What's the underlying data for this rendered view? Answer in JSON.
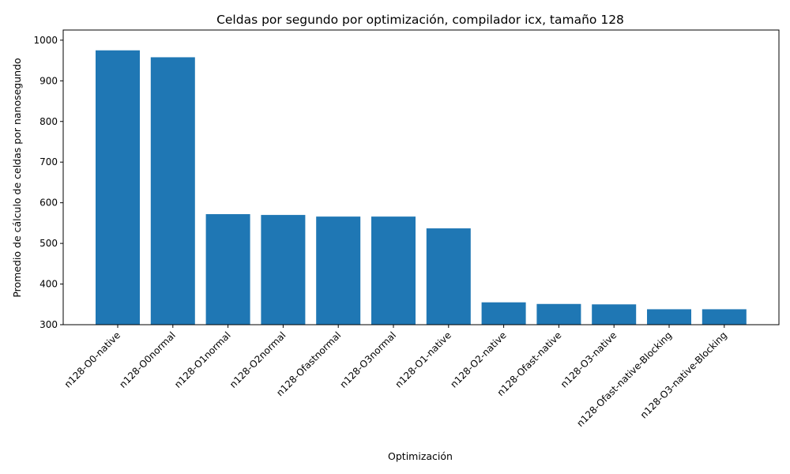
{
  "chart_data": {
    "type": "bar",
    "title": "Celdas por segundo por optimización, compilador icx, tamaño 128",
    "xlabel": "Optimización",
    "ylabel": "Promedio de cálculo de celdas por nanosegundo",
    "categories": [
      "n128-O0-native",
      "n128-O0normal",
      "n128-O1normal",
      "n128-O2normal",
      "n128-Ofastnormal",
      "n128-O3normal",
      "n128-O1-native",
      "n128-O2-native",
      "n128-Ofast-native",
      "n128-O3-native",
      "n128-Ofast-native-Blocking",
      "n128-O3-native-Blocking"
    ],
    "values": [
      975,
      958,
      572,
      570,
      566,
      566,
      537,
      355,
      351,
      350,
      338,
      338
    ],
    "ylim": [
      300,
      1025
    ],
    "yticks": [
      300,
      400,
      500,
      600,
      700,
      800,
      900,
      1000
    ],
    "bar_color": "#1f77b4",
    "grid": false,
    "legend": "none"
  }
}
